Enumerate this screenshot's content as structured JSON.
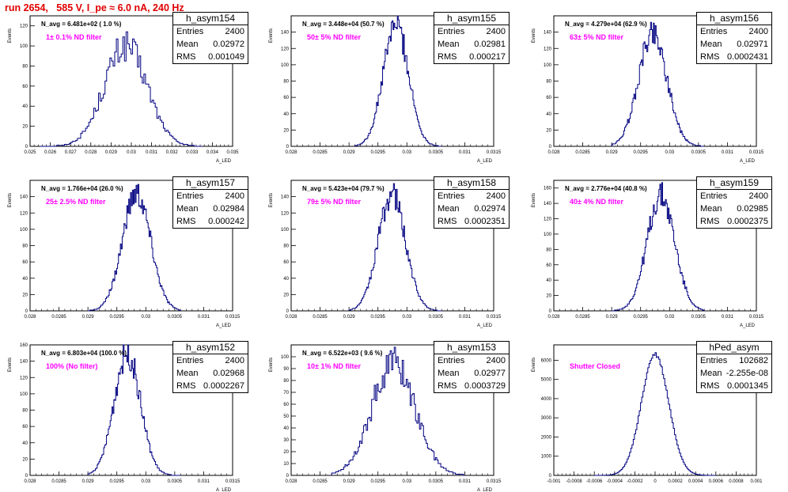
{
  "run_title": "run 2654,   585 V, I_pe ≈ 6.0 nA, 240 Hz",
  "colors": {
    "histogram": "#000080",
    "annotation": "#ff00ff",
    "title": "#e00000"
  },
  "chart_data": [
    {
      "type": "histogram",
      "name": "h_asym154",
      "navg": "N_avg = 6.481e+02 ( 1.0 %)",
      "filter_label": "1± 0.1% ND filter",
      "ylabel": "Events",
      "xlabel": "A_LED",
      "stats": {
        "entries": "2400",
        "mean": "0.02972",
        "rms": "0.001049"
      },
      "xlim": [
        0.025,
        0.035
      ],
      "ylim": [
        0,
        130
      ],
      "xticks": [
        "0.025",
        "0.026",
        "0.027",
        "0.028",
        "0.029",
        "0.03",
        "0.031",
        "0.032",
        "0.033",
        "0.034",
        "0.035"
      ],
      "yticks": [
        "0",
        "20",
        "40",
        "60",
        "80",
        "100",
        "120"
      ],
      "bins": {
        "mean": 0.02972,
        "sigma": 0.001049,
        "peak": 100,
        "low": 0.0255,
        "high": 0.0335,
        "n": 100,
        "jitter": 0.16
      }
    },
    {
      "type": "histogram",
      "name": "h_asym155",
      "navg": "N_avg = 3.448e+04 (50.7 %)",
      "filter_label": "50± 5% ND filter",
      "ylabel": "Events",
      "xlabel": "A_LED",
      "stats": {
        "entries": "2400",
        "mean": "0.02981",
        "rms": "0.000217"
      },
      "xlim": [
        0.028,
        0.0315
      ],
      "ylim": [
        0,
        160
      ],
      "xticks": [
        "0.028",
        "0.0285",
        "0.029",
        "0.0295",
        "0.03",
        "0.0305",
        "0.031",
        "0.0315"
      ],
      "yticks": [
        "0",
        "20",
        "40",
        "60",
        "80",
        "100",
        "120",
        "140"
      ],
      "bins": {
        "mean": 0.02981,
        "sigma": 0.000217,
        "peak": 150,
        "low": 0.0291,
        "high": 0.0306,
        "n": 100,
        "jitter": 0.12
      }
    },
    {
      "type": "histogram",
      "name": "h_asym156",
      "navg": "N_avg = 4.279e+04 (62.9 %)",
      "filter_label": "63± 5% ND filter",
      "ylabel": "Events",
      "xlabel": "A_LED",
      "stats": {
        "entries": "2400",
        "mean": "0.02971",
        "rms": "0.0002431"
      },
      "xlim": [
        0.028,
        0.0315
      ],
      "ylim": [
        0,
        160
      ],
      "xticks": [
        "0.028",
        "0.0285",
        "0.029",
        "0.0295",
        "0.03",
        "0.0305",
        "0.031",
        "0.0315"
      ],
      "yticks": [
        "0",
        "20",
        "40",
        "60",
        "80",
        "100",
        "120",
        "140"
      ],
      "bins": {
        "mean": 0.02971,
        "sigma": 0.0002431,
        "peak": 140,
        "low": 0.029,
        "high": 0.0306,
        "n": 100,
        "jitter": 0.12
      }
    },
    {
      "type": "histogram",
      "name": "h_asym157",
      "navg": "N_avg = 1.766e+04 (26.0 %)",
      "filter_label": "25± 2.5% ND filter",
      "ylabel": "Events",
      "xlabel": "A_LED",
      "stats": {
        "entries": "2400",
        "mean": "0.02984",
        "rms": "0.000242"
      },
      "xlim": [
        0.028,
        0.0315
      ],
      "ylim": [
        0,
        160
      ],
      "xticks": [
        "0.028",
        "0.0285",
        "0.029",
        "0.0295",
        "0.03",
        "0.0305",
        "0.031",
        "0.0315"
      ],
      "yticks": [
        "0",
        "20",
        "40",
        "60",
        "80",
        "100",
        "120",
        "140"
      ],
      "bins": {
        "mean": 0.02984,
        "sigma": 0.000242,
        "peak": 145,
        "low": 0.029,
        "high": 0.0306,
        "n": 100,
        "jitter": 0.12
      }
    },
    {
      "type": "histogram",
      "name": "h_asym158",
      "navg": "N_avg = 5.423e+04 (79.7 %)",
      "filter_label": "79± 5% ND filter",
      "ylabel": "Events",
      "xlabel": "A_LED",
      "stats": {
        "entries": "2400",
        "mean": "0.02974",
        "rms": "0.0002351"
      },
      "xlim": [
        0.028,
        0.0315
      ],
      "ylim": [
        0,
        160
      ],
      "xticks": [
        "0.028",
        "0.0285",
        "0.029",
        "0.0295",
        "0.03",
        "0.0305",
        "0.031",
        "0.0315"
      ],
      "yticks": [
        "0",
        "20",
        "40",
        "60",
        "80",
        "100",
        "120",
        "140"
      ],
      "bins": {
        "mean": 0.02974,
        "sigma": 0.0002351,
        "peak": 143,
        "low": 0.029,
        "high": 0.0306,
        "n": 100,
        "jitter": 0.12
      }
    },
    {
      "type": "histogram",
      "name": "h_asym159",
      "navg": "N_avg = 2.776e+04 (40.8 %)",
      "filter_label": "40± 4% ND filter",
      "ylabel": "Events",
      "xlabel": "A_LED",
      "stats": {
        "entries": "2400",
        "mean": "0.02985",
        "rms": "0.0002375"
      },
      "xlim": [
        0.028,
        0.0315
      ],
      "ylim": [
        0,
        170
      ],
      "xticks": [
        "0.028",
        "0.0285",
        "0.029",
        "0.0295",
        "0.03",
        "0.0305",
        "0.031",
        "0.0315"
      ],
      "yticks": [
        "0",
        "20",
        "40",
        "60",
        "80",
        "100",
        "120",
        "140",
        "160"
      ],
      "bins": {
        "mean": 0.02985,
        "sigma": 0.0002375,
        "peak": 150,
        "low": 0.029,
        "high": 0.0306,
        "n": 100,
        "jitter": 0.12
      }
    },
    {
      "type": "histogram",
      "name": "h_asym152",
      "navg": "N_avg = 6.803e+04 (100.0 %)",
      "filter_label": "100% (No filter)",
      "ylabel": "Events",
      "xlabel": "A_LED",
      "stats": {
        "entries": "2400",
        "mean": "0.02968",
        "rms": "0.0002267"
      },
      "xlim": [
        0.028,
        0.0315
      ],
      "ylim": [
        0,
        160
      ],
      "xticks": [
        "0.028",
        "0.0285",
        "0.029",
        "0.0295",
        "0.03",
        "0.0305",
        "0.031",
        "0.0315"
      ],
      "yticks": [
        "0",
        "20",
        "40",
        "60",
        "80",
        "100",
        "120",
        "140",
        "160"
      ],
      "bins": {
        "mean": 0.02968,
        "sigma": 0.0002267,
        "peak": 150,
        "low": 0.029,
        "high": 0.0306,
        "n": 100,
        "jitter": 0.12
      }
    },
    {
      "type": "histogram",
      "name": "h_asym153",
      "navg": "N_avg = 6.522e+03 ( 9.6 %)",
      "filter_label": "10± 1% ND filter",
      "ylabel": "Events",
      "xlabel": "A_LED",
      "stats": {
        "entries": "2400",
        "mean": "0.02977",
        "rms": "0.0003729"
      },
      "xlim": [
        0.028,
        0.0315
      ],
      "ylim": [
        0,
        110
      ],
      "xticks": [
        "0.028",
        "0.0285",
        "0.029",
        "0.0295",
        "0.03",
        "0.0305",
        "0.031",
        "0.0315"
      ],
      "yticks": [
        "0",
        "10",
        "20",
        "30",
        "40",
        "50",
        "60",
        "70",
        "80",
        "90",
        "100"
      ],
      "bins": {
        "mean": 0.02977,
        "sigma": 0.0003729,
        "peak": 95,
        "low": 0.0287,
        "high": 0.031,
        "n": 100,
        "jitter": 0.16
      }
    },
    {
      "type": "histogram",
      "name": "hPed_asym",
      "navg": "",
      "filter_label": "Shutter Closed",
      "ylabel": "Events",
      "xlabel": "",
      "stats": {
        "entries": "102682",
        "mean": "-2.255e-08",
        "rms": "0.0001345"
      },
      "xlim": [
        -0.001,
        0.001
      ],
      "ylim": [
        0,
        6800
      ],
      "xticks": [
        "-0.001",
        "-0.0008",
        "-0.0006",
        "-0.0004",
        "-0.0002",
        "0",
        "0.0002",
        "0.0004",
        "0.0006",
        "0.0008",
        "0.001"
      ],
      "yticks": [
        "0",
        "1000",
        "2000",
        "3000",
        "4000",
        "5000",
        "6000"
      ],
      "bins": {
        "mean": 0.0,
        "sigma": 0.0001345,
        "peak": 6300,
        "low": -0.0006,
        "high": 0.0006,
        "n": 100,
        "jitter": 0.02
      }
    }
  ]
}
